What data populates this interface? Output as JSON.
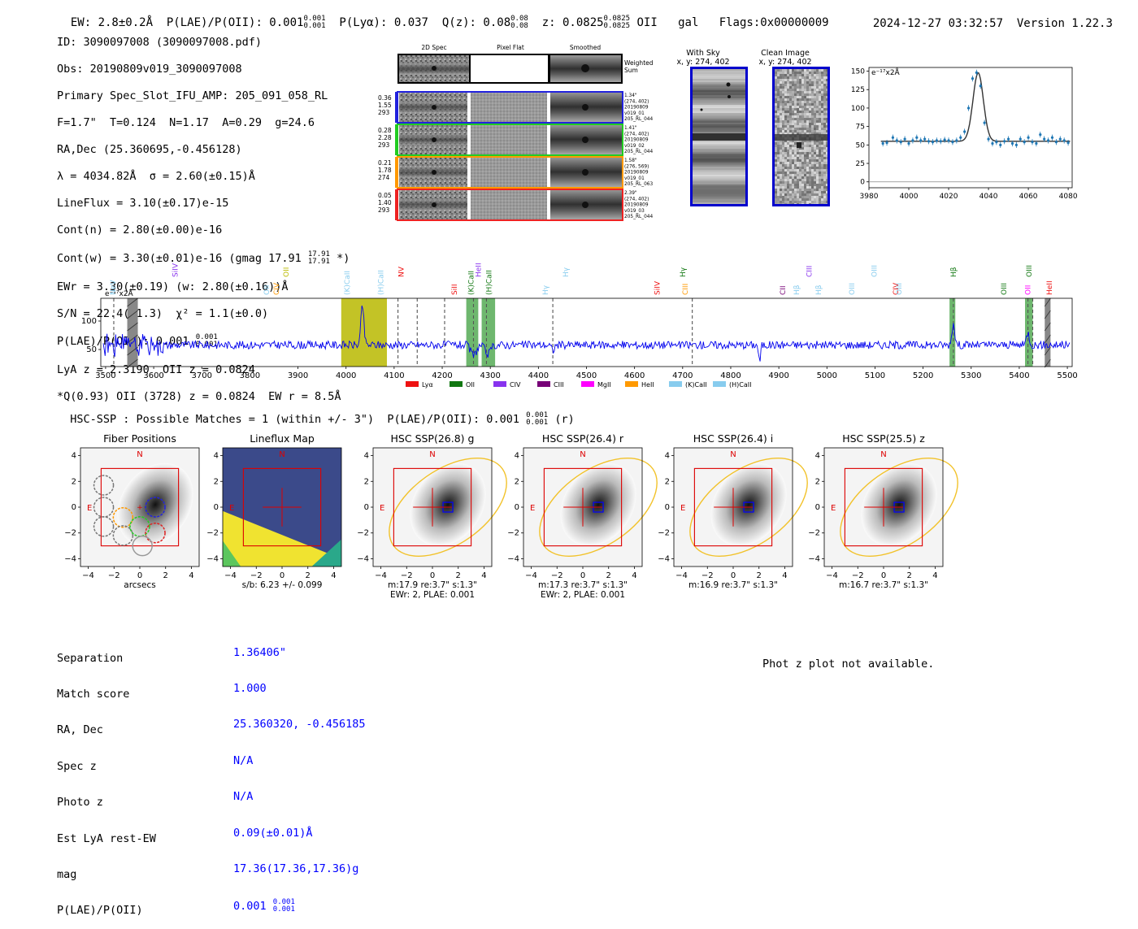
{
  "header": {
    "ew": "EW: 2.8±0.2Å",
    "plae": "P(LAE)/P(OII): 0.001",
    "plae_err": [
      "0.001",
      "0.001"
    ],
    "plya": "P(Lyα): 0.037",
    "qz": "Q(z): 0.08",
    "qz_err": [
      "0.08",
      "0.08"
    ],
    "z": "z: 0.0825",
    "z_err": [
      "0.0825",
      "0.0825"
    ],
    "line": "OII",
    "gal": "gal",
    "flags": "Flags:0x00000009",
    "datetime": "2024-12-27 03:32:57",
    "version": "Version 1.22.3"
  },
  "info": {
    "id": "ID: 3090097008 (3090097008.pdf)",
    "obs": "Obs: 20190809v019_3090097008",
    "primary": "Primary Spec_Slot_IFU_AMP: 205_091_058_RL",
    "fline": "F=1.7\"  T=0.124  N=1.17  A=0.29  g=24.6",
    "radec": "RA,Dec (25.360695,-0.456128)",
    "lambda": "λ = 4034.82Å  σ = 2.60(±0.15)Å",
    "lineflux": "LineFlux = 3.10(±0.17)e-15",
    "contn": "Cont(n) = 2.80(±0.00)e-16",
    "contw": "Cont(w) = 3.30(±0.01)e-16 (gmag 17.91",
    "contw_err": [
      "17.91",
      "17.91"
    ],
    "contw_end": " *)",
    "ewr": "EWr = 3.30(±0.19) (w: 2.80(±0.16))Å",
    "sn": "S/N = 22.4(±1.3)  χ² = 1.1(±0.0)",
    "plae": "P(LAE)/P(OII): 0.001",
    "plae_err": [
      "0.001",
      "0.001"
    ],
    "lya": "LyA z = 2.3190  OII z = 0.0824",
    "q": "*Q(0.93) OII (3728) z = 0.0824  EW r = 8.5Å"
  },
  "cutouts": {
    "col_titles": [
      "2D Spec",
      "Pixel Flat",
      "Smoothed"
    ],
    "weighted": "Weighted\nSum",
    "rows": [
      {
        "left": [
          "0.36",
          "1.55",
          "293"
        ],
        "right": [
          "1.34\"",
          "(274, 402)",
          "20190809",
          "v019_01",
          "205_RL_044"
        ],
        "color": "#2222dd"
      },
      {
        "left": [
          "0.28",
          "2.28",
          "293"
        ],
        "right": [
          "1.41\"",
          "(274, 402)",
          "20190809",
          "v019_02",
          "205_RL_044"
        ],
        "color": "#22cc22"
      },
      {
        "left": [
          "0.21",
          "1.78",
          "274"
        ],
        "right": [
          "1.58\"",
          "(276, 569)",
          "20190809",
          "v019_01",
          "205_RL_063"
        ],
        "color": "#ff9900"
      },
      {
        "left": [
          "0.05",
          "1.40",
          "293"
        ],
        "right": [
          "2.39\"",
          "(274, 402)",
          "20190809",
          "v019_03",
          "205_RL_044"
        ],
        "color": "#ee2222"
      }
    ]
  },
  "sky": {
    "with_sky": "With Sky",
    "with_sky_xy": "x, y: 274, 402",
    "clean": "Clean Image",
    "clean_xy": "x, y: 274, 402"
  },
  "zoom_chart": {
    "scale_label": "e⁻¹⁷x2Å"
  },
  "full_spec": {
    "scale_label": "e⁻¹⁷x2Å"
  },
  "hsc": {
    "title": "HSC-SSP : Possible Matches = 1 (within +/- 3\")  P(LAE)/P(OII): 0.001",
    "title_err": [
      "0.001",
      "0.001"
    ],
    "title_end": " (r)",
    "panels": [
      {
        "title": "Fiber Positions",
        "sub1": "arcsecs",
        "sub2": ""
      },
      {
        "title": "Lineflux Map",
        "sub1": "s/b: 6.23 +/- 0.099",
        "sub2": ""
      },
      {
        "title": "HSC SSP(26.8) g",
        "sub1": "m:17.9  re:3.7\"  s:1.3\"",
        "sub2": "EWr: 2, PLAE: 0.001"
      },
      {
        "title": "HSC SSP(26.4) r",
        "sub1": "m:17.3  re:3.7\"  s:1.3\"",
        "sub2": "EWr: 2, PLAE: 0.001"
      },
      {
        "title": "HSC SSP(26.4) i",
        "sub1": "m:16.9  re:3.7\"  s:1.3\"",
        "sub2": ""
      },
      {
        "title": "HSC SSP(25.5) z",
        "sub1": "m:16.7  re:3.7\"  s:1.3\"",
        "sub2": ""
      }
    ],
    "compass_n": "N",
    "compass_e": "E"
  },
  "match": {
    "labels": [
      "Separation",
      "Match score",
      "RA, Dec",
      "Spec z",
      "Photo z",
      "Est LyA rest-EW",
      "mag",
      "P(LAE)/P(OII)"
    ],
    "values": [
      "1.36406\"",
      "1.000",
      "25.360320, -0.456185",
      "N/A",
      "N/A",
      "0.09(±0.01)Å",
      "17.36(17.36,17.36)g",
      "0.001"
    ],
    "plae_err": [
      "0.001",
      "0.001"
    ],
    "photz_note": "Phot z plot not available."
  },
  "chart_data": [
    {
      "type": "scatter",
      "name": "emission-line-zoom",
      "xlim": [
        3980,
        4082
      ],
      "ylim": [
        -8,
        155
      ],
      "xticks": [
        3980,
        4000,
        4020,
        4040,
        4060,
        4080
      ],
      "yticks": [
        0,
        25,
        50,
        75,
        100,
        125,
        150
      ],
      "x": [
        3987,
        3989,
        3992,
        3994,
        3996,
        3998,
        4000,
        4002,
        4004,
        4006,
        4008,
        4010,
        4012,
        4014,
        4016,
        4018,
        4020,
        4022,
        4024,
        4026,
        4028,
        4030,
        4032,
        4034,
        4036,
        4038,
        4040,
        4042,
        4044,
        4046,
        4048,
        4050,
        4052,
        4054,
        4056,
        4058,
        4060,
        4062,
        4064,
        4066,
        4068,
        4070,
        4072,
        4074,
        4076,
        4078,
        4080
      ],
      "y": [
        52,
        53,
        60,
        56,
        54,
        58,
        52,
        56,
        60,
        56,
        58,
        55,
        54,
        56,
        55,
        57,
        56,
        54,
        56,
        60,
        68,
        100,
        140,
        148,
        130,
        80,
        58,
        52,
        54,
        50,
        55,
        58,
        52,
        50,
        58,
        54,
        60,
        54,
        52,
        64,
        58,
        56,
        60,
        54,
        58,
        56,
        53
      ],
      "fit_continuum": 55,
      "fit_peak_x": 4034.82,
      "fit_peak_amp": 93,
      "fit_sigma": 2.6
    },
    {
      "type": "line",
      "name": "full-spectrum",
      "xlim": [
        3490,
        5510
      ],
      "ylim": [
        20,
        140
      ],
      "xticks": [
        3500,
        3600,
        3700,
        3800,
        3900,
        4000,
        4100,
        4200,
        4300,
        4400,
        4500,
        4600,
        4700,
        4800,
        4900,
        5000,
        5100,
        5200,
        5300,
        5400,
        5500
      ],
      "yticks": [
        50,
        100
      ],
      "legend": [
        {
          "label": "Lyα",
          "color": "#ee1111"
        },
        {
          "label": "OII",
          "color": "#117711"
        },
        {
          "label": "CIV",
          "color": "#8833ee"
        },
        {
          "label": "CIII",
          "color": "#770077"
        },
        {
          "label": "MgII",
          "color": "#ff00ff"
        },
        {
          "label": "HeII",
          "color": "#ff9900"
        },
        {
          "label": "(K)CaII",
          "color": "#88ccee"
        },
        {
          "label": "(H)CaII",
          "color": "#88ccee"
        }
      ],
      "shaded": [
        {
          "x0": 3990,
          "x1": 4085,
          "color": "#b8b800"
        },
        {
          "x0": 4250,
          "x1": 4275,
          "color": "#55aa55"
        },
        {
          "x0": 4282,
          "x1": 4310,
          "color": "#55aa55"
        },
        {
          "x0": 5255,
          "x1": 5267,
          "color": "#55aa55"
        },
        {
          "x0": 5412,
          "x1": 5428,
          "color": "#55aa55"
        }
      ],
      "dashed": [
        3517,
        4108,
        4148,
        4205,
        4265,
        4292,
        4430,
        4720,
        5263,
        5418,
        5428
      ],
      "lines": [
        {
          "label": "NeV",
          "x": 3515,
          "color": "#88ccee"
        },
        {
          "label": "SiIV",
          "x": 3645,
          "color": "#8833ee"
        },
        {
          "label": "OII",
          "x": 3835,
          "color": "#88ccee"
        },
        {
          "label": "CIV",
          "x": 3855,
          "color": "#ff9900"
        },
        {
          "label": "OII",
          "x": 3875,
          "color": "#bbbb00"
        },
        {
          "label": "(K)CaII",
          "x": 4002,
          "color": "#88ccee"
        },
        {
          "label": "(H)CaII",
          "x": 4072,
          "color": "#88ccee"
        },
        {
          "label": "NV",
          "x": 4115,
          "color": "#ee1111"
        },
        {
          "label": "SiII",
          "x": 4225,
          "color": "#ee1111"
        },
        {
          "label": "(K)CaII",
          "x": 4260,
          "color": "#117711"
        },
        {
          "label": "HeII",
          "x": 4275,
          "color": "#8833ee"
        },
        {
          "label": "(H)CaII",
          "x": 4297,
          "color": "#117711"
        },
        {
          "label": "Hγ",
          "x": 4415,
          "color": "#88ccee"
        },
        {
          "label": "Hγ",
          "x": 4457,
          "color": "#88ccee"
        },
        {
          "label": "SiIV",
          "x": 4647,
          "color": "#ee1111"
        },
        {
          "label": "CIII",
          "x": 4705,
          "color": "#ff9900"
        },
        {
          "label": "Hγ",
          "x": 4700,
          "color": "#117711"
        },
        {
          "label": "CII",
          "x": 4908,
          "color": "#770077"
        },
        {
          "label": "Hβ",
          "x": 4937,
          "color": "#88ccee"
        },
        {
          "label": "CIII",
          "x": 4963,
          "color": "#8833ee"
        },
        {
          "label": "Hβ",
          "x": 4983,
          "color": "#88ccee"
        },
        {
          "label": "OIII",
          "x": 5052,
          "color": "#88ccee"
        },
        {
          "label": "OIII",
          "x": 5098,
          "color": "#88ccee"
        },
        {
          "label": "CIV",
          "x": 5143,
          "color": "#ee1111"
        },
        {
          "label": "OIII",
          "x": 5150,
          "color": "#88ccee"
        },
        {
          "label": "Hβ",
          "x": 5263,
          "color": "#117711"
        },
        {
          "label": "OIII",
          "x": 5368,
          "color": "#117711"
        },
        {
          "label": "OII",
          "x": 5418,
          "color": "#ff00ff"
        },
        {
          "label": "OIII",
          "x": 5420,
          "color": "#117711"
        },
        {
          "label": "HeII",
          "x": 5463,
          "color": "#ee1111"
        }
      ],
      "continuum": 58,
      "peaks": [
        {
          "x": 4034,
          "amp": 70,
          "w": 3
        },
        {
          "x": 4265,
          "amp": -18,
          "w": 6
        },
        {
          "x": 4295,
          "amp": -16,
          "w": 6
        },
        {
          "x": 4430,
          "amp": -10,
          "w": 3
        },
        {
          "x": 4860,
          "amp": -30,
          "w": 2
        },
        {
          "x": 5263,
          "amp": 38,
          "w": 3
        },
        {
          "x": 5418,
          "amp": 22,
          "w": 3
        }
      ]
    }
  ]
}
